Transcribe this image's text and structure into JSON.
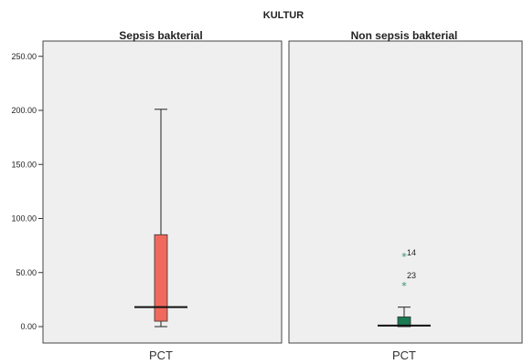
{
  "chart_data": {
    "type": "boxplot",
    "title": "KULTUR",
    "ylim": [
      0,
      260
    ],
    "yticks": [
      0,
      50,
      100,
      150,
      200,
      250
    ],
    "ytick_labels": [
      "0.00",
      "50.00",
      "100.00",
      "150.00",
      "200.00",
      "250.00"
    ],
    "panels": [
      {
        "name": "Sepsis bakterial",
        "category": "PCT",
        "color": "#f0695c",
        "min": 0,
        "q1": 5,
        "median": 18,
        "q3": 85,
        "max": 201,
        "outliers": []
      },
      {
        "name": "Non sepsis bakterial",
        "category": "PCT",
        "color": "#1a7a52",
        "min": 0,
        "q1": 0,
        "median": 1,
        "q3": 9,
        "max": 18,
        "outliers": [
          {
            "label": "14",
            "value": 66,
            "marker": "*"
          },
          {
            "label": "23",
            "value": 39,
            "marker": "*"
          }
        ]
      }
    ]
  }
}
